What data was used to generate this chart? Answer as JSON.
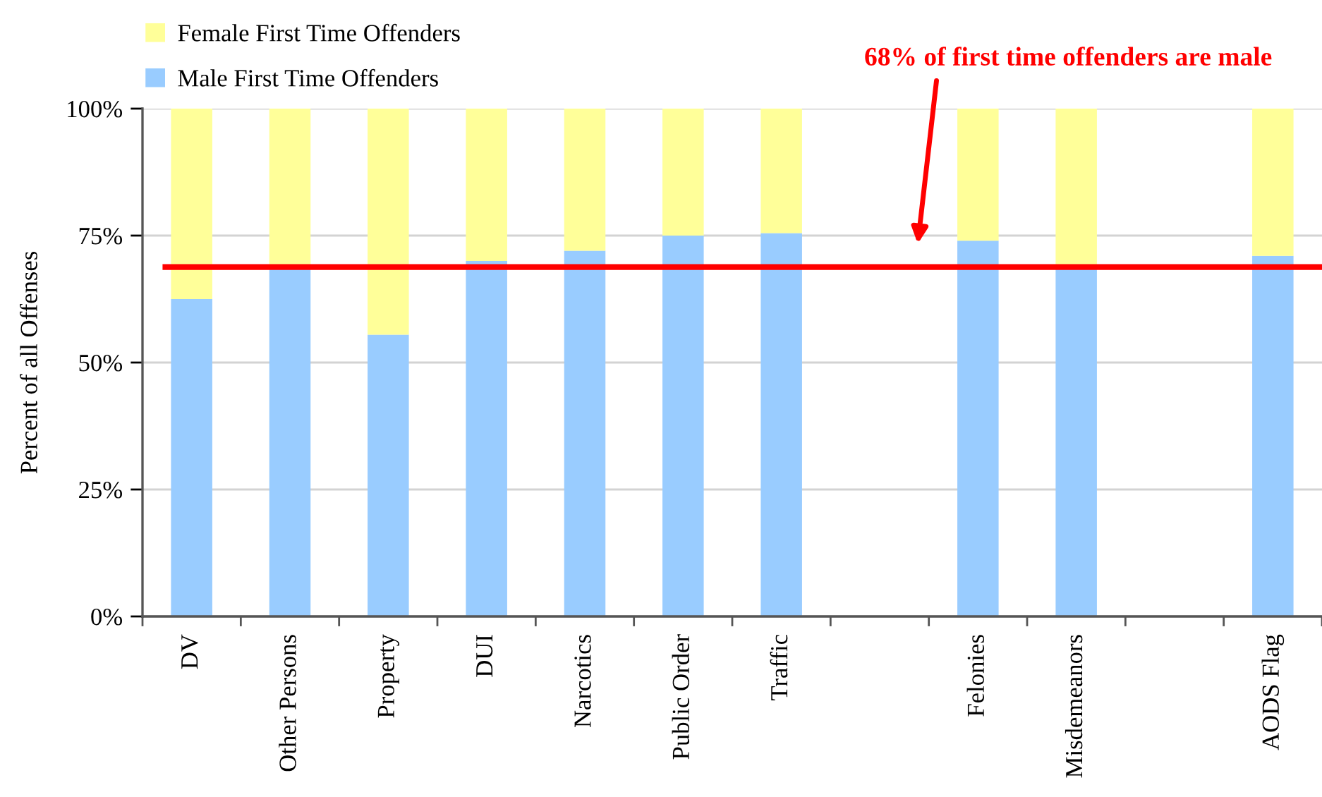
{
  "chart_data": {
    "type": "bar",
    "stacked": true,
    "categories": [
      "DV",
      "Other Persons",
      "Property",
      "DUI",
      "Narcotics",
      "Public Order",
      "Traffic",
      null,
      "Felonies",
      "Misdemeanors",
      null,
      "AODS Flag"
    ],
    "series": [
      {
        "name": "Male First Time Offenders",
        "color": "#99ccff",
        "values": [
          62.5,
          69,
          55.5,
          70,
          72,
          75,
          75.5,
          null,
          74,
          69,
          null,
          71
        ]
      },
      {
        "name": "Female First Time Offenders",
        "color": "#ffff99",
        "values": [
          37.5,
          31,
          44.5,
          30,
          28,
          25,
          24.5,
          null,
          26,
          31,
          null,
          29
        ]
      }
    ],
    "ylabel": "Percent of all Offenses",
    "ylim": [
      0,
      100
    ],
    "yticks": [
      {
        "value": 0,
        "label": "0%"
      },
      {
        "value": 25,
        "label": "25%"
      },
      {
        "value": 50,
        "label": "50%"
      },
      {
        "value": 75,
        "label": "75%"
      },
      {
        "value": 100,
        "label": "100%"
      }
    ],
    "grid": "y",
    "legend": "top left",
    "ref_lines": [
      {
        "axis": "y",
        "value": 68.8,
        "label": "68% of first time offenders are male",
        "color": "#ff0000"
      }
    ]
  }
}
